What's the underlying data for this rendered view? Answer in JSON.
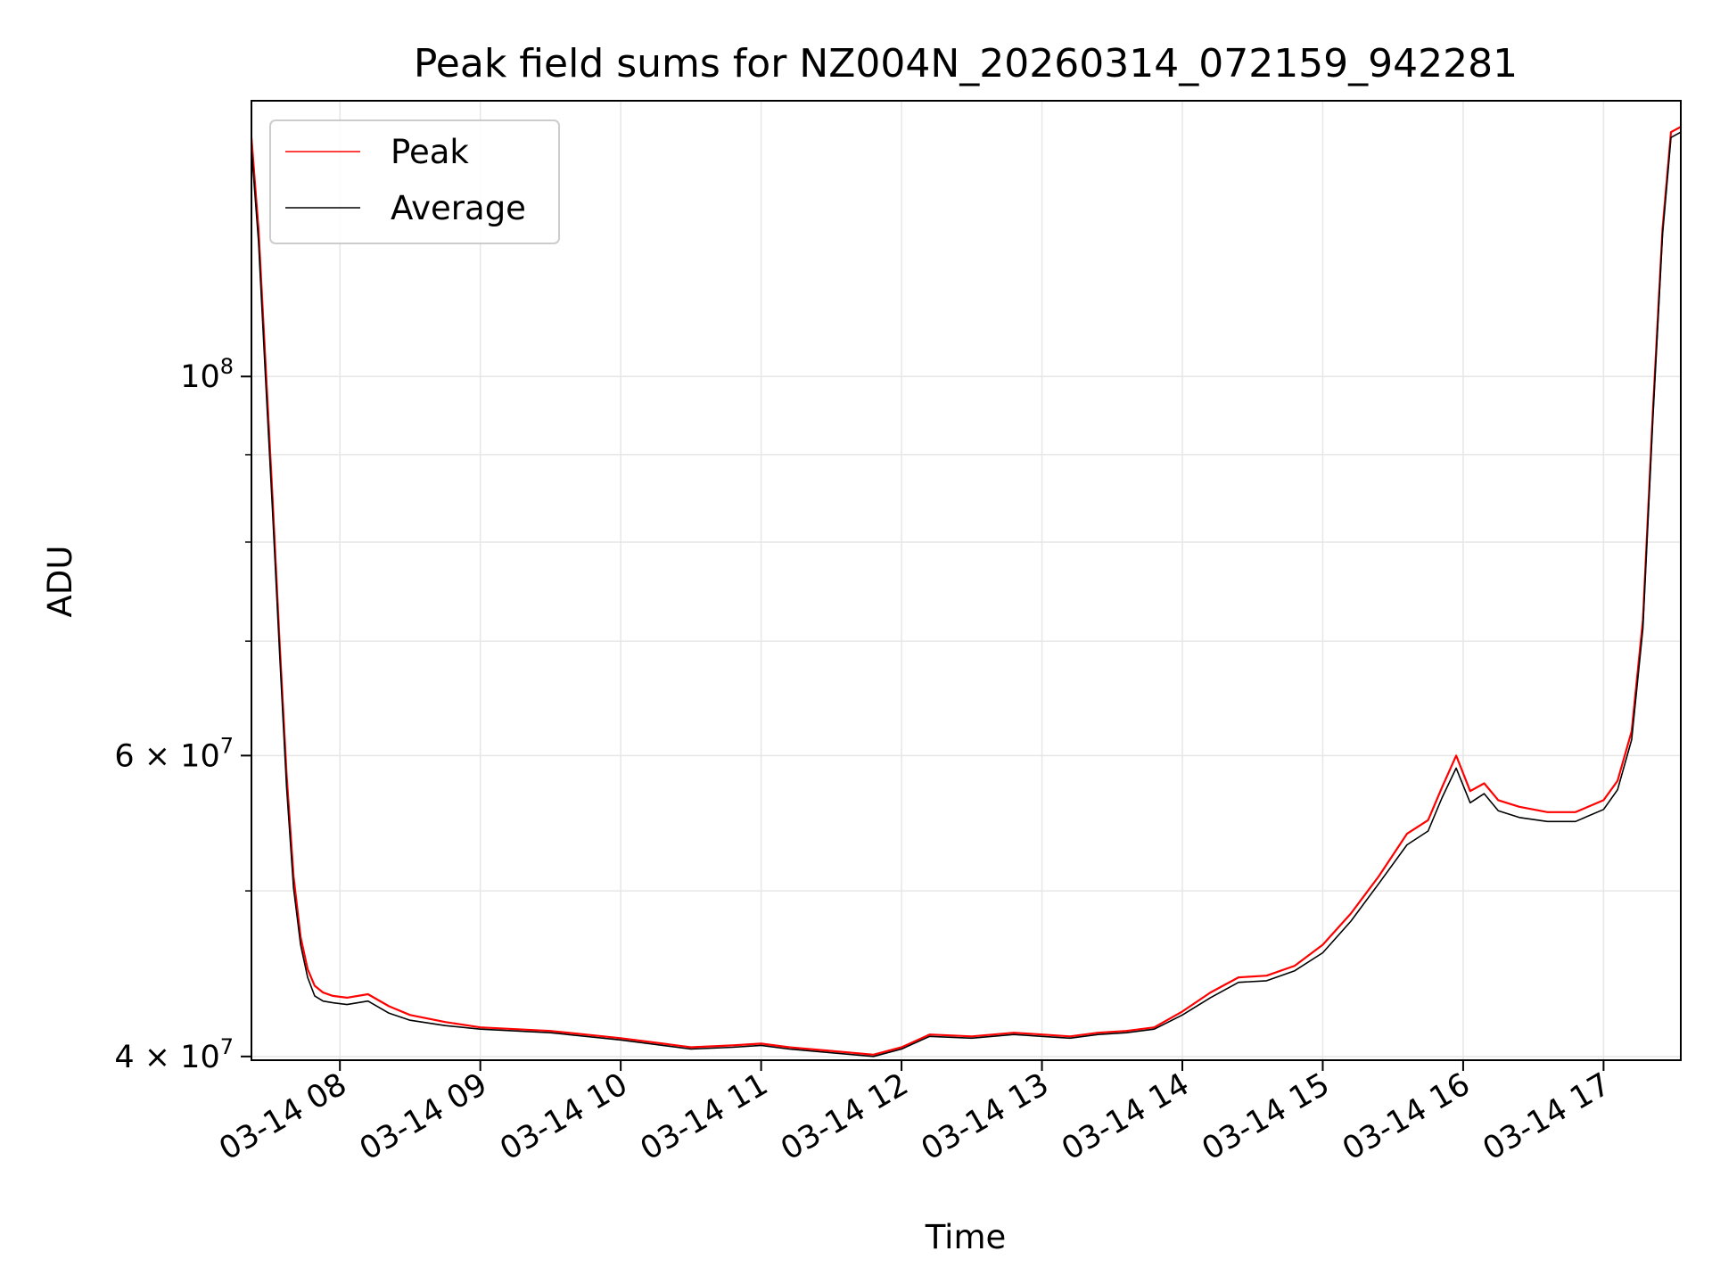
{
  "chart_data": {
    "type": "line",
    "title": "Peak field sums for NZ004N_20260314_072159_942281",
    "xlabel": "Time",
    "ylabel": "ADU",
    "yscale": "log",
    "xlim": [
      7.37,
      17.55
    ],
    "ylim": [
      39800000,
      145000000
    ],
    "x_ticks": [
      {
        "value": 8,
        "label": "03-14 08"
      },
      {
        "value": 9,
        "label": "03-14 09"
      },
      {
        "value": 10,
        "label": "03-14 10"
      },
      {
        "value": 11,
        "label": "03-14 11"
      },
      {
        "value": 12,
        "label": "03-14 12"
      },
      {
        "value": 13,
        "label": "03-14 13"
      },
      {
        "value": 14,
        "label": "03-14 14"
      },
      {
        "value": 15,
        "label": "03-14 15"
      },
      {
        "value": 16,
        "label": "03-14 16"
      },
      {
        "value": 17,
        "label": "03-14 17"
      }
    ],
    "y_ticks_major": [
      {
        "value": 40000000,
        "base": "4",
        "times": "×",
        "exp_base": "10",
        "exp": "7"
      },
      {
        "value": 60000000,
        "base": "6",
        "times": "×",
        "exp_base": "10",
        "exp": "7"
      },
      {
        "value": 100000000,
        "base": "",
        "times": "",
        "exp_base": "10",
        "exp": "8"
      }
    ],
    "y_ticks_minor": [
      50000000,
      70000000,
      80000000,
      90000000
    ],
    "grid": true,
    "legend": "upper-left",
    "series": [
      {
        "name": "Peak",
        "color": "#ff0000",
        "x": [
          7.37,
          7.42,
          7.47,
          7.52,
          7.57,
          7.62,
          7.67,
          7.72,
          7.77,
          7.82,
          7.88,
          7.95,
          8.05,
          8.2,
          8.35,
          8.5,
          8.75,
          9.0,
          9.5,
          10.0,
          10.3,
          10.5,
          10.8,
          11.0,
          11.2,
          11.5,
          11.8,
          12.0,
          12.2,
          12.5,
          12.8,
          13.0,
          13.2,
          13.4,
          13.6,
          13.8,
          14.0,
          14.2,
          14.4,
          14.6,
          14.8,
          15.0,
          15.2,
          15.4,
          15.6,
          15.75,
          15.85,
          15.95,
          16.05,
          16.15,
          16.25,
          16.4,
          16.6,
          16.8,
          17.0,
          17.1,
          17.2,
          17.28,
          17.35,
          17.42,
          17.48,
          17.55
        ],
        "y": [
          138000000,
          122000000,
          102000000,
          85000000,
          70000000,
          58500000,
          51000000,
          47000000,
          45000000,
          44000000,
          43600000,
          43400000,
          43300000,
          43500000,
          42800000,
          42300000,
          41900000,
          41600000,
          41400000,
          41000000,
          40700000,
          40500000,
          40600000,
          40700000,
          40500000,
          40300000,
          40100000,
          40500000,
          41200000,
          41100000,
          41300000,
          41200000,
          41100000,
          41300000,
          41400000,
          41600000,
          42500000,
          43600000,
          44500000,
          44600000,
          45200000,
          46500000,
          48500000,
          51000000,
          54000000,
          55000000,
          57500000,
          60000000,
          57200000,
          57800000,
          56500000,
          56000000,
          55600000,
          55600000,
          56500000,
          58000000,
          62000000,
          72000000,
          95000000,
          122000000,
          139000000,
          140000000
        ]
      },
      {
        "name": "Average",
        "color": "#000000",
        "x": [
          7.37,
          7.42,
          7.47,
          7.52,
          7.57,
          7.62,
          7.67,
          7.72,
          7.77,
          7.82,
          7.88,
          7.95,
          8.05,
          8.2,
          8.35,
          8.5,
          8.75,
          9.0,
          9.5,
          10.0,
          10.3,
          10.5,
          10.8,
          11.0,
          11.2,
          11.5,
          11.8,
          12.0,
          12.2,
          12.5,
          12.8,
          13.0,
          13.2,
          13.4,
          13.6,
          13.8,
          14.0,
          14.2,
          14.4,
          14.6,
          14.8,
          15.0,
          15.2,
          15.4,
          15.6,
          15.75,
          15.85,
          15.95,
          16.05,
          16.15,
          16.25,
          16.4,
          16.6,
          16.8,
          17.0,
          17.1,
          17.2,
          17.28,
          17.35,
          17.42,
          17.48,
          17.55
        ],
        "y": [
          136000000,
          120000000,
          100000000,
          83500000,
          69000000,
          57500000,
          50200000,
          46500000,
          44500000,
          43400000,
          43100000,
          43000000,
          42900000,
          43100000,
          42400000,
          42000000,
          41700000,
          41500000,
          41300000,
          40900000,
          40600000,
          40400000,
          40500000,
          40600000,
          40400000,
          40200000,
          40000000,
          40400000,
          41100000,
          41000000,
          41200000,
          41100000,
          41000000,
          41200000,
          41300000,
          41500000,
          42300000,
          43300000,
          44200000,
          44300000,
          44900000,
          46000000,
          48000000,
          50500000,
          53200000,
          54200000,
          56700000,
          59000000,
          56300000,
          57000000,
          55700000,
          55200000,
          54900000,
          54900000,
          55800000,
          57300000,
          61300000,
          71200000,
          94000000,
          121000000,
          138000000,
          139000000
        ]
      }
    ]
  }
}
